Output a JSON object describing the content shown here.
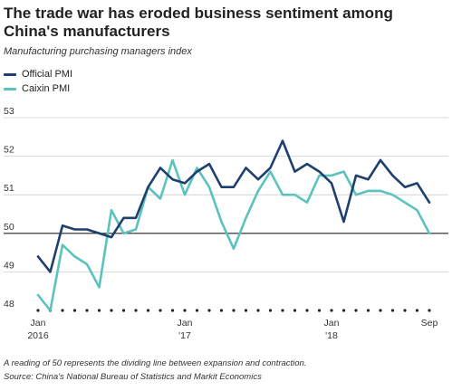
{
  "header": {
    "title": "The trade war has eroded business sentiment among China's manufacturers",
    "subtitle": "Manufacturing purchasing managers index"
  },
  "footer": {
    "note": "A reading of 50 represents the dividing line between expansion and contraction.",
    "source": "Source: China's National Bureau of Statistics and Markit Economics"
  },
  "chart_data": {
    "type": "line",
    "title": "The trade war has eroded business sentiment among China's manufacturers",
    "subtitle": "Manufacturing purchasing managers index",
    "ylim": [
      48,
      53
    ],
    "yticks": [
      48,
      49,
      50,
      51,
      52,
      53
    ],
    "reference_line": 50,
    "grid": "horizontal",
    "legend_position": "top-left",
    "x_tick_labels": [
      {
        "index": 0,
        "lines": [
          "Jan",
          "2016"
        ]
      },
      {
        "index": 12,
        "lines": [
          "Jan",
          "'17"
        ]
      },
      {
        "index": 24,
        "lines": [
          "Jan",
          "'18"
        ]
      },
      {
        "index": 32,
        "lines": [
          "Sep",
          ""
        ]
      }
    ],
    "months": [
      "Jan 2016",
      "Feb 2016",
      "Mar 2016",
      "Apr 2016",
      "May 2016",
      "Jun 2016",
      "Jul 2016",
      "Aug 2016",
      "Sep 2016",
      "Oct 2016",
      "Nov 2016",
      "Dec 2016",
      "Jan 2017",
      "Feb 2017",
      "Mar 2017",
      "Apr 2017",
      "May 2017",
      "Jun 2017",
      "Jul 2017",
      "Aug 2017",
      "Sep 2017",
      "Oct 2017",
      "Nov 2017",
      "Dec 2017",
      "Jan 2018",
      "Feb 2018",
      "Mar 2018",
      "Apr 2018",
      "May 2018",
      "Jun 2018",
      "Jul 2018",
      "Aug 2018",
      "Sep 2018"
    ],
    "series": [
      {
        "name": "Official PMI",
        "color": "#1f3f6e",
        "values": [
          49.4,
          49.0,
          50.2,
          50.1,
          50.1,
          50.0,
          49.9,
          50.4,
          50.4,
          51.2,
          51.7,
          51.4,
          51.3,
          51.6,
          51.8,
          51.2,
          51.2,
          51.7,
          51.4,
          51.7,
          52.4,
          51.6,
          51.8,
          51.6,
          51.3,
          50.3,
          51.5,
          51.4,
          51.9,
          51.5,
          51.2,
          51.3,
          50.8
        ]
      },
      {
        "name": "Caixin PMI",
        "color": "#5bc2bd",
        "values": [
          48.4,
          48.0,
          49.7,
          49.4,
          49.2,
          48.6,
          50.6,
          50.0,
          50.1,
          51.2,
          50.9,
          51.9,
          51.0,
          51.7,
          51.2,
          50.3,
          49.6,
          50.4,
          51.1,
          51.6,
          51.0,
          51.0,
          50.8,
          51.5,
          51.5,
          51.6,
          51.0,
          51.1,
          51.1,
          51.0,
          50.8,
          50.6,
          50.0
        ]
      }
    ]
  }
}
